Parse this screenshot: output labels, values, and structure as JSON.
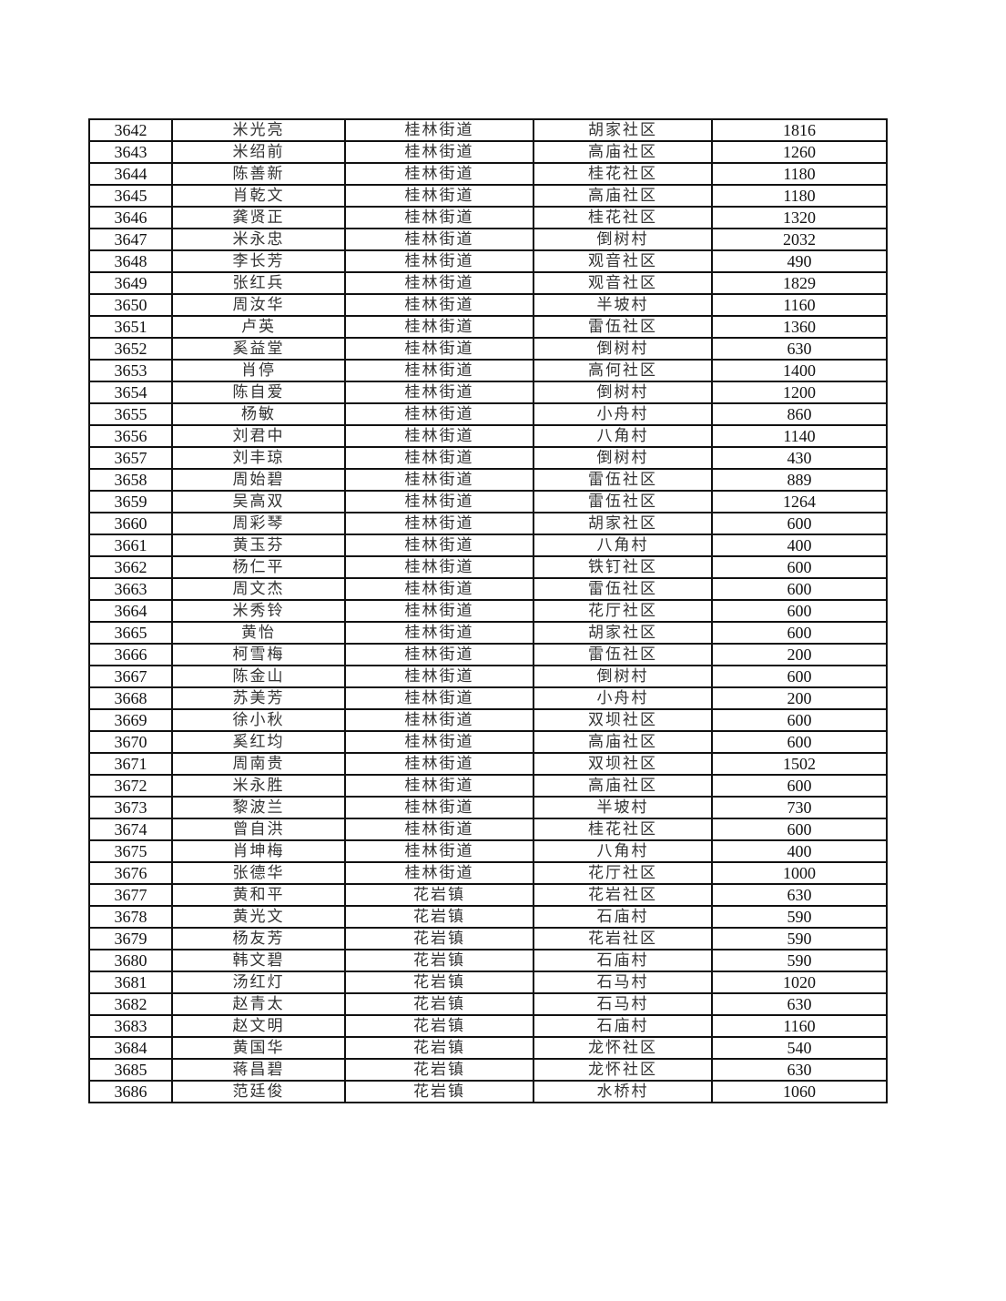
{
  "table": {
    "rows": [
      [
        "3642",
        "米光亮",
        "桂林街道",
        "胡家社区",
        "1816"
      ],
      [
        "3643",
        "米绍前",
        "桂林街道",
        "高庙社区",
        "1260"
      ],
      [
        "3644",
        "陈善新",
        "桂林街道",
        "桂花社区",
        "1180"
      ],
      [
        "3645",
        "肖乾文",
        "桂林街道",
        "高庙社区",
        "1180"
      ],
      [
        "3646",
        "龚贤正",
        "桂林街道",
        "桂花社区",
        "1320"
      ],
      [
        "3647",
        "米永忠",
        "桂林街道",
        "倒树村",
        "2032"
      ],
      [
        "3648",
        "李长芳",
        "桂林街道",
        "观音社区",
        "490"
      ],
      [
        "3649",
        "张红兵",
        "桂林街道",
        "观音社区",
        "1829"
      ],
      [
        "3650",
        "周汝华",
        "桂林街道",
        "半坡村",
        "1160"
      ],
      [
        "3651",
        "卢英",
        "桂林街道",
        "雷伍社区",
        "1360"
      ],
      [
        "3652",
        "奚益堂",
        "桂林街道",
        "倒树村",
        "630"
      ],
      [
        "3653",
        "肖停",
        "桂林街道",
        "高何社区",
        "1400"
      ],
      [
        "3654",
        "陈自爱",
        "桂林街道",
        "倒树村",
        "1200"
      ],
      [
        "3655",
        "杨敏",
        "桂林街道",
        "小舟村",
        "860"
      ],
      [
        "3656",
        "刘君中",
        "桂林街道",
        "八角村",
        "1140"
      ],
      [
        "3657",
        "刘丰琼",
        "桂林街道",
        "倒树村",
        "430"
      ],
      [
        "3658",
        "周始碧",
        "桂林街道",
        "雷伍社区",
        "889"
      ],
      [
        "3659",
        "吴高双",
        "桂林街道",
        "雷伍社区",
        "1264"
      ],
      [
        "3660",
        "周彩琴",
        "桂林街道",
        "胡家社区",
        "600"
      ],
      [
        "3661",
        "黄玉芬",
        "桂林街道",
        "八角村",
        "400"
      ],
      [
        "3662",
        "杨仁平",
        "桂林街道",
        "铁钉社区",
        "600"
      ],
      [
        "3663",
        "周文杰",
        "桂林街道",
        "雷伍社区",
        "600"
      ],
      [
        "3664",
        "米秀铃",
        "桂林街道",
        "花厅社区",
        "600"
      ],
      [
        "3665",
        "黄怡",
        "桂林街道",
        "胡家社区",
        "600"
      ],
      [
        "3666",
        "柯雪梅",
        "桂林街道",
        "雷伍社区",
        "200"
      ],
      [
        "3667",
        "陈金山",
        "桂林街道",
        "倒树村",
        "600"
      ],
      [
        "3668",
        "苏美芳",
        "桂林街道",
        "小舟村",
        "200"
      ],
      [
        "3669",
        "徐小秋",
        "桂林街道",
        "双坝社区",
        "600"
      ],
      [
        "3670",
        "奚红均",
        "桂林街道",
        "高庙社区",
        "600"
      ],
      [
        "3671",
        "周南贵",
        "桂林街道",
        "双坝社区",
        "1502"
      ],
      [
        "3672",
        "米永胜",
        "桂林街道",
        "高庙社区",
        "600"
      ],
      [
        "3673",
        "黎波兰",
        "桂林街道",
        "半坡村",
        "730"
      ],
      [
        "3674",
        "曾自洪",
        "桂林街道",
        "桂花社区",
        "600"
      ],
      [
        "3675",
        "肖坤梅",
        "桂林街道",
        "八角村",
        "400"
      ],
      [
        "3676",
        "张德华",
        "桂林街道",
        "花厅社区",
        "1000"
      ],
      [
        "3677",
        "黄和平",
        "花岩镇",
        "花岩社区",
        "630"
      ],
      [
        "3678",
        "黄光文",
        "花岩镇",
        "石庙村",
        "590"
      ],
      [
        "3679",
        "杨友芳",
        "花岩镇",
        "花岩社区",
        "590"
      ],
      [
        "3680",
        "韩文碧",
        "花岩镇",
        "石庙村",
        "590"
      ],
      [
        "3681",
        "汤红灯",
        "花岩镇",
        "石马村",
        "1020"
      ],
      [
        "3682",
        "赵青太",
        "花岩镇",
        "石马村",
        "630"
      ],
      [
        "3683",
        "赵文明",
        "花岩镇",
        "石庙村",
        "1160"
      ],
      [
        "3684",
        "黄国华",
        "花岩镇",
        "龙怀社区",
        "540"
      ],
      [
        "3685",
        "蒋昌碧",
        "花岩镇",
        "龙怀社区",
        "630"
      ],
      [
        "3686",
        "范廷俊",
        "花岩镇",
        "水桥村",
        "1060"
      ]
    ]
  }
}
